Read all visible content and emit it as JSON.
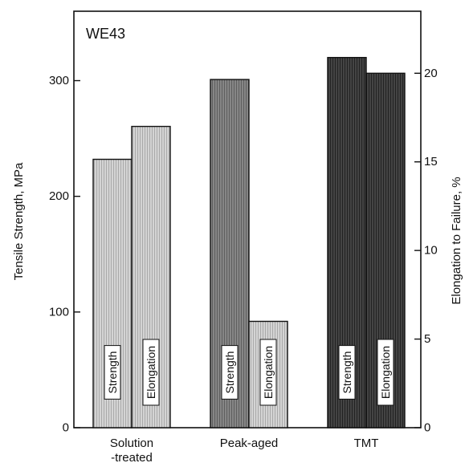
{
  "chart_data": {
    "type": "bar",
    "annotation": "WE43",
    "categories": [
      "Solution\n-treated",
      "Peak-aged",
      "TMT"
    ],
    "series": [
      {
        "name": "Strength",
        "axis": "left",
        "values": [
          232,
          301,
          320
        ]
      },
      {
        "name": "Elongation",
        "axis": "right",
        "values": [
          17,
          6,
          20
        ]
      }
    ],
    "bar_labels": [
      "Strength",
      "Elongation"
    ],
    "ylabel": "Tensile Strength, MPa",
    "ylabel_right": "Elongation to Failure, %",
    "ylim": [
      0,
      360
    ],
    "ylim_right": [
      0,
      23.5
    ],
    "yticks": [
      0,
      100,
      200,
      300
    ],
    "yticks_right": [
      0,
      5,
      10,
      15,
      20
    ],
    "colors": {
      "Solution\n-treated": [
        "#c9c9c9",
        "#c9c9c9"
      ],
      "Peak-aged": [
        "#7a7a7a",
        "#c9c9c9"
      ],
      "TMT": [
        "#3a3a3a",
        "#3a3a3a"
      ]
    }
  }
}
